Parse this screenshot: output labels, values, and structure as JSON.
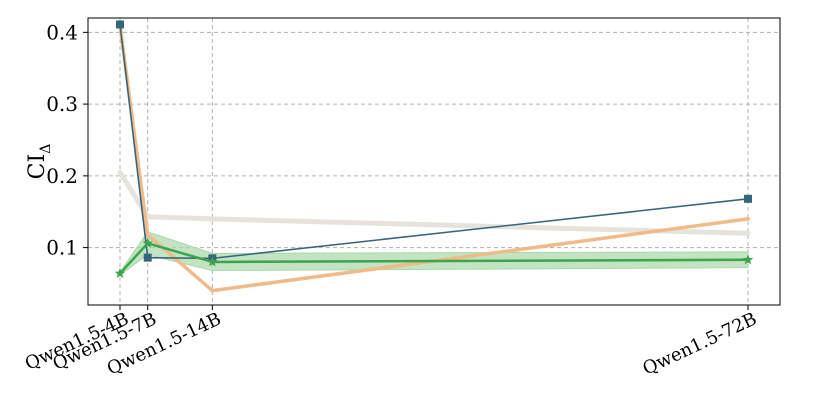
{
  "chart_data": {
    "type": "line",
    "categories": [
      "Qwen1.5-4B",
      "Qwen1.5-7B",
      "Qwen1.5-14B",
      "Qwen1.5-72B"
    ],
    "x": [
      4,
      7,
      14,
      72
    ],
    "ylabel": "CI",
    "ylabel_subscript": "Δ",
    "ylim": [
      0.02,
      0.42
    ],
    "yticks": [
      0.1,
      0.2,
      0.3,
      0.4
    ],
    "ytick_labels": [
      "0.1",
      "0.2",
      "0.3",
      "0.4"
    ],
    "grid": true,
    "series": [
      {
        "color": "#e6e2dc",
        "marker": "circle",
        "line_width": 5,
        "values": [
          0.205,
          0.143,
          0.14,
          0.12
        ]
      },
      {
        "color": "#efbb8a",
        "marker": "circle",
        "line_width": 3.5,
        "values": [
          0.41,
          0.118,
          0.04,
          0.14
        ]
      },
      {
        "color": "#36657c",
        "marker": "square",
        "line_width": 1.6,
        "values": [
          0.411,
          0.086,
          0.085,
          0.168
        ]
      },
      {
        "color": "#3fa34d",
        "band_color": "#a8d8a8",
        "marker": "star",
        "line_width": 2.5,
        "values": [
          0.064,
          0.106,
          0.08,
          0.083
        ],
        "band_low": [
          0.062,
          0.09,
          0.068,
          0.072
        ],
        "band_high": [
          0.066,
          0.122,
          0.092,
          0.094
        ]
      }
    ]
  }
}
